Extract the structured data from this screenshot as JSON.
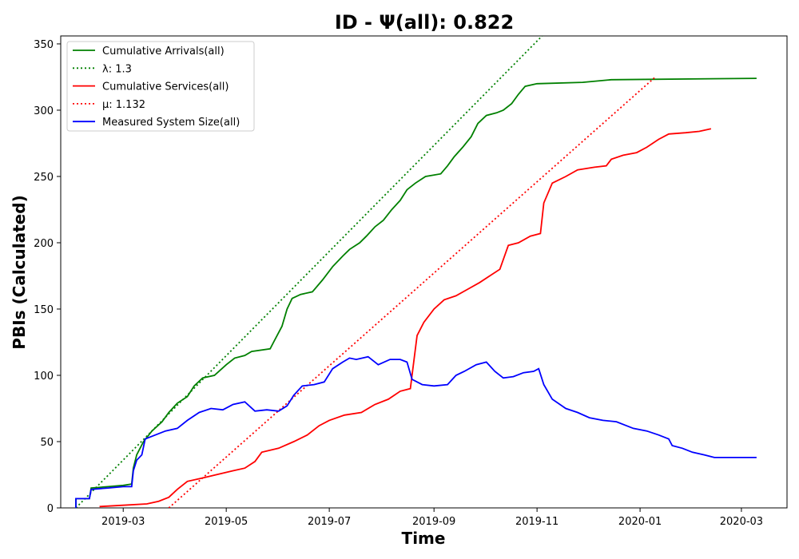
{
  "chart_data": {
    "type": "line",
    "title": "ID -  Ψ(all): 0.822",
    "xlabel": "Time",
    "ylabel": "PBIs (Calculated)",
    "xlim": [
      "2019-01-23",
      "2020-03-28"
    ],
    "ylim": [
      0,
      356
    ],
    "x_ticks": [
      "2019-03",
      "2019-05",
      "2019-07",
      "2019-09",
      "2019-11",
      "2020-01",
      "2020-03"
    ],
    "y_ticks": [
      0,
      50,
      100,
      150,
      200,
      250,
      300,
      350
    ],
    "grid": false,
    "legend_position": "top-left",
    "series": [
      {
        "name": "Cumulative Arrivals(all)",
        "color": "#008000",
        "style": "solid",
        "points": [
          [
            "2019-02-01",
            0
          ],
          [
            "2019-02-01",
            7
          ],
          [
            "2019-02-09",
            7
          ],
          [
            "2019-02-10",
            15
          ],
          [
            "2019-02-20",
            16
          ],
          [
            "2019-03-01",
            17
          ],
          [
            "2019-03-06",
            18
          ],
          [
            "2019-03-07",
            30
          ],
          [
            "2019-03-09",
            40
          ],
          [
            "2019-03-13",
            50
          ],
          [
            "2019-03-18",
            58
          ],
          [
            "2019-03-24",
            65
          ],
          [
            "2019-03-28",
            72
          ],
          [
            "2019-04-02",
            79
          ],
          [
            "2019-04-08",
            84
          ],
          [
            "2019-04-12",
            92
          ],
          [
            "2019-04-17",
            98
          ],
          [
            "2019-04-24",
            100
          ],
          [
            "2019-05-01",
            108
          ],
          [
            "2019-05-06",
            113
          ],
          [
            "2019-05-12",
            115
          ],
          [
            "2019-05-16",
            118
          ],
          [
            "2019-05-27",
            120
          ],
          [
            "2019-05-29",
            125
          ],
          [
            "2019-06-03",
            137
          ],
          [
            "2019-06-06",
            150
          ],
          [
            "2019-06-09",
            158
          ],
          [
            "2019-06-14",
            161
          ],
          [
            "2019-06-21",
            163
          ],
          [
            "2019-06-27",
            172
          ],
          [
            "2019-07-03",
            182
          ],
          [
            "2019-07-09",
            190
          ],
          [
            "2019-07-13",
            195
          ],
          [
            "2019-07-19",
            200
          ],
          [
            "2019-07-23",
            205
          ],
          [
            "2019-07-28",
            212
          ],
          [
            "2019-08-02",
            217
          ],
          [
            "2019-08-07",
            225
          ],
          [
            "2019-08-12",
            232
          ],
          [
            "2019-08-16",
            240
          ],
          [
            "2019-08-21",
            245
          ],
          [
            "2019-08-27",
            250
          ],
          [
            "2019-09-05",
            252
          ],
          [
            "2019-09-09",
            258
          ],
          [
            "2019-09-13",
            265
          ],
          [
            "2019-09-18",
            272
          ],
          [
            "2019-09-23",
            280
          ],
          [
            "2019-09-27",
            290
          ],
          [
            "2019-10-02",
            296
          ],
          [
            "2019-10-08",
            298
          ],
          [
            "2019-10-12",
            300
          ],
          [
            "2019-10-17",
            305
          ],
          [
            "2019-10-21",
            312
          ],
          [
            "2019-10-25",
            318
          ],
          [
            "2019-11-01",
            320
          ],
          [
            "2019-11-28",
            321
          ],
          [
            "2019-12-15",
            323
          ],
          [
            "2020-03-10",
            324
          ]
        ]
      },
      {
        "name": "λ: 1.3",
        "color": "#008000",
        "style": "dotted",
        "points": [
          [
            "2019-02-01",
            0
          ],
          [
            "2019-11-04",
            356
          ]
        ]
      },
      {
        "name": "Cumulative Services(all)",
        "color": "#ff0000",
        "style": "solid",
        "points": [
          [
            "2019-02-15",
            1
          ],
          [
            "2019-03-01",
            2
          ],
          [
            "2019-03-15",
            3
          ],
          [
            "2019-03-22",
            5
          ],
          [
            "2019-03-28",
            8
          ],
          [
            "2019-04-02",
            14
          ],
          [
            "2019-04-08",
            20
          ],
          [
            "2019-04-15",
            22
          ],
          [
            "2019-04-25",
            25
          ],
          [
            "2019-05-05",
            28
          ],
          [
            "2019-05-12",
            30
          ],
          [
            "2019-05-18",
            35
          ],
          [
            "2019-05-22",
            42
          ],
          [
            "2019-06-01",
            45
          ],
          [
            "2019-06-10",
            50
          ],
          [
            "2019-06-18",
            55
          ],
          [
            "2019-06-25",
            62
          ],
          [
            "2019-07-01",
            66
          ],
          [
            "2019-07-10",
            70
          ],
          [
            "2019-07-20",
            72
          ],
          [
            "2019-07-28",
            78
          ],
          [
            "2019-08-05",
            82
          ],
          [
            "2019-08-12",
            88
          ],
          [
            "2019-08-18",
            90
          ],
          [
            "2019-08-20",
            110
          ],
          [
            "2019-08-22",
            130
          ],
          [
            "2019-08-26",
            140
          ],
          [
            "2019-09-01",
            150
          ],
          [
            "2019-09-07",
            157
          ],
          [
            "2019-09-14",
            160
          ],
          [
            "2019-09-21",
            165
          ],
          [
            "2019-09-28",
            170
          ],
          [
            "2019-10-04",
            175
          ],
          [
            "2019-10-10",
            180
          ],
          [
            "2019-10-15",
            198
          ],
          [
            "2019-10-21",
            200
          ],
          [
            "2019-10-28",
            205
          ],
          [
            "2019-11-03",
            207
          ],
          [
            "2019-11-05",
            230
          ],
          [
            "2019-11-10",
            245
          ],
          [
            "2019-11-18",
            250
          ],
          [
            "2019-11-25",
            255
          ],
          [
            "2019-12-05",
            257
          ],
          [
            "2019-12-12",
            258
          ],
          [
            "2019-12-15",
            263
          ],
          [
            "2019-12-22",
            266
          ],
          [
            "2019-12-30",
            268
          ],
          [
            "2020-01-05",
            272
          ],
          [
            "2020-01-12",
            278
          ],
          [
            "2020-01-18",
            282
          ],
          [
            "2020-01-28",
            283
          ],
          [
            "2020-02-05",
            284
          ],
          [
            "2020-02-12",
            286
          ]
        ]
      },
      {
        "name": "μ: 1.132",
        "color": "#ff0000",
        "style": "dotted",
        "points": [
          [
            "2019-03-28",
            0
          ],
          [
            "2020-01-10",
            325
          ]
        ]
      },
      {
        "name": "Measured System Size(all)",
        "color": "#0000ff",
        "style": "solid",
        "points": [
          [
            "2019-02-01",
            0
          ],
          [
            "2019-02-01",
            7
          ],
          [
            "2019-02-09",
            7
          ],
          [
            "2019-02-10",
            14
          ],
          [
            "2019-02-20",
            15
          ],
          [
            "2019-03-01",
            16
          ],
          [
            "2019-03-06",
            16
          ],
          [
            "2019-03-07",
            28
          ],
          [
            "2019-03-09",
            36
          ],
          [
            "2019-03-12",
            40
          ],
          [
            "2019-03-14",
            52
          ],
          [
            "2019-03-20",
            55
          ],
          [
            "2019-03-26",
            58
          ],
          [
            "2019-04-02",
            60
          ],
          [
            "2019-04-08",
            66
          ],
          [
            "2019-04-15",
            72
          ],
          [
            "2019-04-22",
            75
          ],
          [
            "2019-04-29",
            74
          ],
          [
            "2019-05-05",
            78
          ],
          [
            "2019-05-12",
            80
          ],
          [
            "2019-05-18",
            73
          ],
          [
            "2019-05-25",
            74
          ],
          [
            "2019-06-01",
            73
          ],
          [
            "2019-06-06",
            77
          ],
          [
            "2019-06-10",
            85
          ],
          [
            "2019-06-15",
            92
          ],
          [
            "2019-06-22",
            93
          ],
          [
            "2019-06-28",
            95
          ],
          [
            "2019-07-03",
            105
          ],
          [
            "2019-07-09",
            110
          ],
          [
            "2019-07-13",
            113
          ],
          [
            "2019-07-17",
            112
          ],
          [
            "2019-07-24",
            114
          ],
          [
            "2019-07-30",
            108
          ],
          [
            "2019-08-06",
            112
          ],
          [
            "2019-08-12",
            112
          ],
          [
            "2019-08-16",
            110
          ],
          [
            "2019-08-19",
            97
          ],
          [
            "2019-08-25",
            93
          ],
          [
            "2019-09-01",
            92
          ],
          [
            "2019-09-09",
            93
          ],
          [
            "2019-09-14",
            100
          ],
          [
            "2019-09-19",
            103
          ],
          [
            "2019-09-26",
            108
          ],
          [
            "2019-10-02",
            110
          ],
          [
            "2019-10-07",
            103
          ],
          [
            "2019-10-12",
            98
          ],
          [
            "2019-10-18",
            99
          ],
          [
            "2019-10-24",
            102
          ],
          [
            "2019-10-30",
            103
          ],
          [
            "2019-11-02",
            105
          ],
          [
            "2019-11-05",
            93
          ],
          [
            "2019-11-10",
            82
          ],
          [
            "2019-11-18",
            75
          ],
          [
            "2019-11-25",
            72
          ],
          [
            "2019-12-02",
            68
          ],
          [
            "2019-12-10",
            66
          ],
          [
            "2019-12-18",
            65
          ],
          [
            "2019-12-28",
            60
          ],
          [
            "2020-01-05",
            58
          ],
          [
            "2020-01-12",
            55
          ],
          [
            "2020-01-18",
            52
          ],
          [
            "2020-01-20",
            47
          ],
          [
            "2020-01-26",
            45
          ],
          [
            "2020-02-01",
            42
          ],
          [
            "2020-02-08",
            40
          ],
          [
            "2020-02-14",
            38
          ],
          [
            "2020-03-10",
            38
          ]
        ]
      }
    ]
  }
}
